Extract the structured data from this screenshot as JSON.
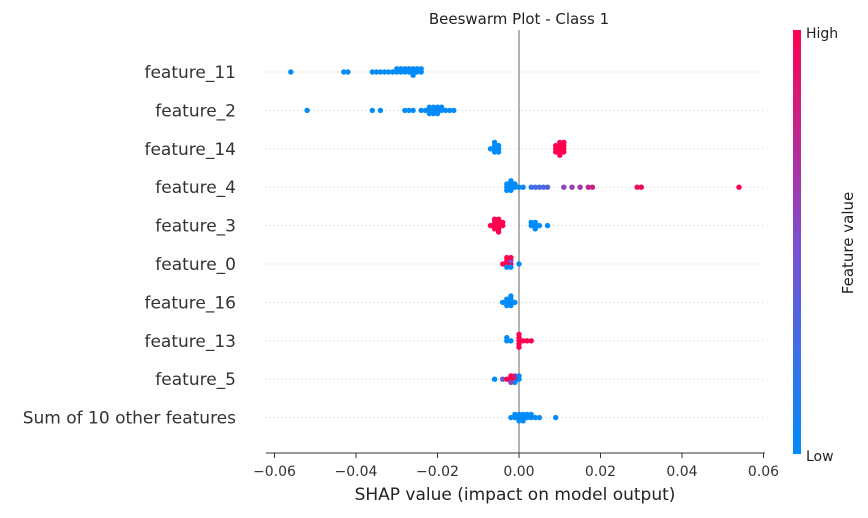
{
  "chart_data": {
    "type": "scatter",
    "subtype": "beeswarm",
    "title": "Beeswarm Plot - Class 1",
    "xlabel": "SHAP value (impact on model output)",
    "xlim": [
      -0.062,
      0.06
    ],
    "xticks": [
      "−0.06",
      "−0.04",
      "−0.02",
      "0.00",
      "0.02",
      "0.04",
      "0.06"
    ],
    "xtick_values": [
      -0.06,
      -0.04,
      -0.02,
      0.0,
      0.02,
      0.04,
      0.06
    ],
    "zero_line": 0.0,
    "grid": false,
    "colorbar": {
      "label": "Feature value",
      "high_label": "High",
      "low_label": "Low",
      "low_color": "#008bfb",
      "high_color": "#ff0051"
    },
    "features": [
      {
        "name": "feature_11",
        "points": [
          {
            "x": -0.056,
            "v": 0
          },
          {
            "x": -0.043,
            "v": 0
          },
          {
            "x": -0.042,
            "v": 0
          },
          {
            "x": -0.036,
            "v": 0
          },
          {
            "x": -0.035,
            "v": 0
          },
          {
            "x": -0.034,
            "v": 0
          },
          {
            "x": -0.033,
            "v": 0
          },
          {
            "x": -0.032,
            "v": 0
          },
          {
            "x": -0.031,
            "v": 0
          },
          {
            "x": -0.03,
            "v": 0
          },
          {
            "x": -0.029,
            "v": 0
          },
          {
            "x": -0.028,
            "v": 0
          },
          {
            "x": -0.027,
            "v": 0
          },
          {
            "x": -0.026,
            "v": 0
          },
          {
            "x": -0.025,
            "v": 0
          },
          {
            "x": -0.024,
            "v": 0
          },
          {
            "x": -0.029,
            "v": 0
          },
          {
            "x": -0.027,
            "v": 0
          },
          {
            "x": -0.026,
            "v": 0
          },
          {
            "x": -0.025,
            "v": 0
          },
          {
            "x": -0.028,
            "v": 0
          },
          {
            "x": -0.024,
            "v": 0
          },
          {
            "x": -0.03,
            "v": 0
          },
          {
            "x": -0.026,
            "v": 0
          }
        ]
      },
      {
        "name": "feature_2",
        "points": [
          {
            "x": -0.052,
            "v": 0
          },
          {
            "x": -0.036,
            "v": 0
          },
          {
            "x": -0.034,
            "v": 0
          },
          {
            "x": -0.028,
            "v": 0
          },
          {
            "x": -0.027,
            "v": 0
          },
          {
            "x": -0.026,
            "v": 0
          },
          {
            "x": -0.024,
            "v": 0
          },
          {
            "x": -0.023,
            "v": 0
          },
          {
            "x": -0.022,
            "v": 0
          },
          {
            "x": -0.021,
            "v": 0
          },
          {
            "x": -0.02,
            "v": 0
          },
          {
            "x": -0.019,
            "v": 0
          },
          {
            "x": -0.018,
            "v": 0
          },
          {
            "x": -0.017,
            "v": 0
          },
          {
            "x": -0.022,
            "v": 0
          },
          {
            "x": -0.021,
            "v": 0
          },
          {
            "x": -0.02,
            "v": 0
          },
          {
            "x": -0.019,
            "v": 0
          },
          {
            "x": -0.021,
            "v": 0
          },
          {
            "x": -0.02,
            "v": 0
          },
          {
            "x": -0.016,
            "v": 0
          },
          {
            "x": -0.022,
            "v": 0
          }
        ]
      },
      {
        "name": "feature_14",
        "points": [
          {
            "x": -0.007,
            "v": 0
          },
          {
            "x": -0.006,
            "v": 0
          },
          {
            "x": -0.005,
            "v": 0
          },
          {
            "x": -0.006,
            "v": 0
          },
          {
            "x": -0.005,
            "v": 0
          },
          {
            "x": -0.006,
            "v": 0
          },
          {
            "x": -0.005,
            "v": 0
          },
          {
            "x": -0.006,
            "v": 0
          },
          {
            "x": 0.009,
            "v": 1
          },
          {
            "x": 0.01,
            "v": 1
          },
          {
            "x": 0.011,
            "v": 1
          },
          {
            "x": 0.01,
            "v": 1
          },
          {
            "x": 0.011,
            "v": 1
          },
          {
            "x": 0.009,
            "v": 1
          },
          {
            "x": 0.01,
            "v": 1
          },
          {
            "x": 0.011,
            "v": 1
          },
          {
            "x": 0.01,
            "v": 1
          },
          {
            "x": 0.01,
            "v": 1
          },
          {
            "x": 0.009,
            "v": 1
          },
          {
            "x": 0.011,
            "v": 1
          }
        ]
      },
      {
        "name": "feature_4",
        "points": [
          {
            "x": -0.003,
            "v": 0
          },
          {
            "x": -0.002,
            "v": 0
          },
          {
            "x": -0.002,
            "v": 0
          },
          {
            "x": -0.001,
            "v": 0
          },
          {
            "x": -0.003,
            "v": 0
          },
          {
            "x": -0.002,
            "v": 0
          },
          {
            "x": -0.001,
            "v": 0
          },
          {
            "x": -0.002,
            "v": 0
          },
          {
            "x": -0.003,
            "v": 0
          },
          {
            "x": 0.0,
            "v": 0
          },
          {
            "x": 0.001,
            "v": 0.05
          },
          {
            "x": 0.003,
            "v": 0.2
          },
          {
            "x": 0.004,
            "v": 0.25
          },
          {
            "x": 0.005,
            "v": 0.3
          },
          {
            "x": 0.006,
            "v": 0.3
          },
          {
            "x": 0.007,
            "v": 0.35
          },
          {
            "x": 0.011,
            "v": 0.55
          },
          {
            "x": 0.013,
            "v": 0.6
          },
          {
            "x": 0.015,
            "v": 0.65
          },
          {
            "x": 0.017,
            "v": 0.75
          },
          {
            "x": 0.018,
            "v": 0.8
          },
          {
            "x": 0.029,
            "v": 0.95
          },
          {
            "x": 0.03,
            "v": 0.95
          },
          {
            "x": 0.054,
            "v": 1
          }
        ]
      },
      {
        "name": "feature_3",
        "points": [
          {
            "x": -0.007,
            "v": 1
          },
          {
            "x": -0.006,
            "v": 1
          },
          {
            "x": -0.005,
            "v": 1
          },
          {
            "x": -0.006,
            "v": 1
          },
          {
            "x": -0.005,
            "v": 1
          },
          {
            "x": -0.004,
            "v": 1
          },
          {
            "x": -0.006,
            "v": 1
          },
          {
            "x": -0.005,
            "v": 1
          },
          {
            "x": -0.004,
            "v": 1
          },
          {
            "x": -0.005,
            "v": 1
          },
          {
            "x": -0.006,
            "v": 1
          },
          {
            "x": -0.005,
            "v": 1
          },
          {
            "x": 0.003,
            "v": 0
          },
          {
            "x": 0.004,
            "v": 0
          },
          {
            "x": 0.003,
            "v": 0
          },
          {
            "x": 0.004,
            "v": 0
          },
          {
            "x": 0.005,
            "v": 0
          },
          {
            "x": 0.004,
            "v": 0
          },
          {
            "x": 0.007,
            "v": 0
          }
        ]
      },
      {
        "name": "feature_0",
        "points": [
          {
            "x": -0.004,
            "v": 1
          },
          {
            "x": -0.003,
            "v": 1
          },
          {
            "x": -0.002,
            "v": 1
          },
          {
            "x": -0.003,
            "v": 1
          },
          {
            "x": -0.002,
            "v": 0.5
          },
          {
            "x": -0.003,
            "v": 0
          },
          {
            "x": -0.002,
            "v": 0
          },
          {
            "x": -0.003,
            "v": 1
          },
          {
            "x": -0.002,
            "v": 1
          },
          {
            "x": 0.0,
            "v": 0
          }
        ]
      },
      {
        "name": "feature_16",
        "points": [
          {
            "x": -0.004,
            "v": 0
          },
          {
            "x": -0.003,
            "v": 0
          },
          {
            "x": -0.002,
            "v": 0
          },
          {
            "x": -0.003,
            "v": 0
          },
          {
            "x": -0.002,
            "v": 0
          },
          {
            "x": -0.001,
            "v": 0
          },
          {
            "x": -0.003,
            "v": 0
          },
          {
            "x": -0.002,
            "v": 0
          },
          {
            "x": -0.002,
            "v": 0
          }
        ]
      },
      {
        "name": "feature_13",
        "points": [
          {
            "x": -0.003,
            "v": 0
          },
          {
            "x": -0.002,
            "v": 0
          },
          {
            "x": -0.003,
            "v": 0
          },
          {
            "x": 0.0,
            "v": 1
          },
          {
            "x": 0.0,
            "v": 1
          },
          {
            "x": 0.0,
            "v": 1
          },
          {
            "x": 0.001,
            "v": 1
          },
          {
            "x": 0.002,
            "v": 1
          },
          {
            "x": 0.003,
            "v": 1
          },
          {
            "x": 0.0,
            "v": 1
          },
          {
            "x": 0.0,
            "v": 1
          }
        ]
      },
      {
        "name": "feature_5",
        "points": [
          {
            "x": -0.006,
            "v": 0
          },
          {
            "x": -0.004,
            "v": 0.4
          },
          {
            "x": -0.003,
            "v": 1
          },
          {
            "x": -0.002,
            "v": 1
          },
          {
            "x": -0.001,
            "v": 1
          },
          {
            "x": -0.002,
            "v": 1
          },
          {
            "x": -0.001,
            "v": 0.8
          },
          {
            "x": 0.0,
            "v": 0
          },
          {
            "x": -0.001,
            "v": 0
          },
          {
            "x": 0.0,
            "v": 0
          },
          {
            "x": -0.002,
            "v": 0.6
          }
        ]
      },
      {
        "name": "Sum of 10 other features",
        "points": [
          {
            "x": -0.002,
            "v": 0
          },
          {
            "x": -0.001,
            "v": 0
          },
          {
            "x": 0.0,
            "v": 0
          },
          {
            "x": 0.001,
            "v": 0
          },
          {
            "x": 0.002,
            "v": 0
          },
          {
            "x": 0.003,
            "v": 0
          },
          {
            "x": 0.004,
            "v": 0
          },
          {
            "x": 0.005,
            "v": 0
          },
          {
            "x": -0.001,
            "v": 0
          },
          {
            "x": 0.0,
            "v": 0
          },
          {
            "x": 0.001,
            "v": 0
          },
          {
            "x": 0.002,
            "v": 0
          },
          {
            "x": 0.003,
            "v": 0
          },
          {
            "x": 0.0,
            "v": 0
          },
          {
            "x": 0.001,
            "v": 0
          },
          {
            "x": 0.009,
            "v": 0
          }
        ]
      }
    ]
  }
}
